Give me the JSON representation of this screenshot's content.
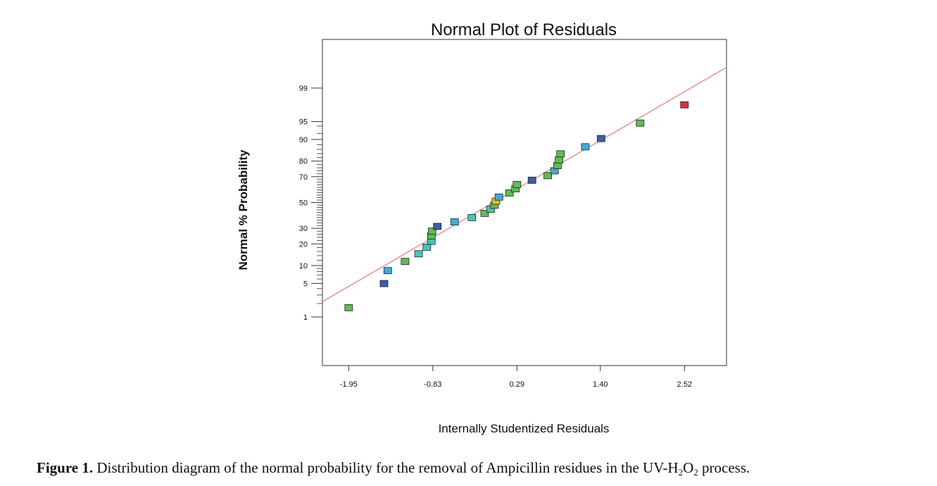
{
  "chart_data": {
    "type": "scatter",
    "title": "Normal Plot of Residuals",
    "xlabel": "Internally Studentized Residuals",
    "ylabel": "Normal % Probability",
    "xlim": [
      -2.3,
      3.08
    ],
    "x_ticks": [
      -1.95,
      -0.83,
      0.29,
      1.4,
      2.52
    ],
    "x_tick_labels": [
      "-1.95",
      "-0.83",
      "0.29",
      "1.40",
      "2.52"
    ],
    "y_scale": "normal-probability",
    "y_ticks": [
      1,
      5,
      10,
      20,
      30,
      50,
      70,
      80,
      90,
      95,
      99
    ],
    "y_tick_labels": [
      "1",
      "5",
      "10",
      "20",
      "30",
      "50",
      "70",
      "80",
      "90",
      "95",
      "99"
    ],
    "y_minor_ticks": [
      2,
      3,
      4,
      6,
      7,
      8,
      9,
      12,
      14,
      16,
      18,
      22,
      24,
      26,
      28,
      32,
      34,
      36,
      38,
      40,
      42,
      44,
      46,
      48,
      52,
      54,
      56,
      58,
      60,
      62,
      64,
      66,
      68,
      72,
      74,
      76,
      78,
      82,
      84,
      86,
      88,
      92,
      94
    ],
    "reference_line": {
      "x": [
        -2.3,
        3.08
      ],
      "y": [
        2.2,
        99.7
      ],
      "color": "#f08080"
    },
    "points": [
      {
        "x": -1.95,
        "y": 1.6,
        "color": "#5cbf4f"
      },
      {
        "x": -1.48,
        "y": 4.9,
        "color": "#3a5fa8"
      },
      {
        "x": -1.43,
        "y": 8.2,
        "color": "#3aaee0"
      },
      {
        "x": -1.2,
        "y": 11.4,
        "color": "#5cbf4f"
      },
      {
        "x": -1.02,
        "y": 14.7,
        "color": "#40c8b8"
      },
      {
        "x": -0.91,
        "y": 18.0,
        "color": "#40c8b8"
      },
      {
        "x": -0.85,
        "y": 21.3,
        "color": "#40c8b8"
      },
      {
        "x": -0.85,
        "y": 24.5,
        "color": "#5cbf4f"
      },
      {
        "x": -0.84,
        "y": 27.8,
        "color": "#5cbf4f"
      },
      {
        "x": -0.77,
        "y": 31.1,
        "color": "#3a5fa8"
      },
      {
        "x": -0.54,
        "y": 34.4,
        "color": "#3aaee0"
      },
      {
        "x": -0.31,
        "y": 37.7,
        "color": "#40c8b8"
      },
      {
        "x": -0.14,
        "y": 41.0,
        "color": "#5cbf4f"
      },
      {
        "x": -0.06,
        "y": 44.3,
        "color": "#40c8b8"
      },
      {
        "x": -0.01,
        "y": 47.5,
        "color": "#5cbf4f"
      },
      {
        "x": 0.01,
        "y": 50.8,
        "color": "#e0c020"
      },
      {
        "x": 0.05,
        "y": 54.1,
        "color": "#3aaee0"
      },
      {
        "x": 0.19,
        "y": 57.4,
        "color": "#5cbf4f"
      },
      {
        "x": 0.27,
        "y": 60.7,
        "color": "#5cbf4f"
      },
      {
        "x": 0.29,
        "y": 64.0,
        "color": "#5cbf4f"
      },
      {
        "x": 0.49,
        "y": 67.2,
        "color": "#3a5fa8"
      },
      {
        "x": 0.7,
        "y": 70.5,
        "color": "#5cbf4f"
      },
      {
        "x": 0.79,
        "y": 73.8,
        "color": "#3aaee0"
      },
      {
        "x": 0.83,
        "y": 77.1,
        "color": "#5cbf4f"
      },
      {
        "x": 0.85,
        "y": 80.4,
        "color": "#5cbf4f"
      },
      {
        "x": 0.87,
        "y": 83.7,
        "color": "#5cbf4f"
      },
      {
        "x": 1.2,
        "y": 87.0,
        "color": "#3aaee0"
      },
      {
        "x": 1.41,
        "y": 90.2,
        "color": "#3a5fa8"
      },
      {
        "x": 1.93,
        "y": 94.6,
        "color": "#5cbf4f"
      },
      {
        "x": 2.52,
        "y": 97.6,
        "color": "#e03030"
      }
    ]
  },
  "caption": {
    "label": "Figure 1.",
    "text_before": " Distribution diagram of the normal probability for the removal of Ampicillin residues in the UV-H",
    "sub1": "2",
    "text_mid": "O",
    "sub2": "2",
    "text_after": " process."
  }
}
